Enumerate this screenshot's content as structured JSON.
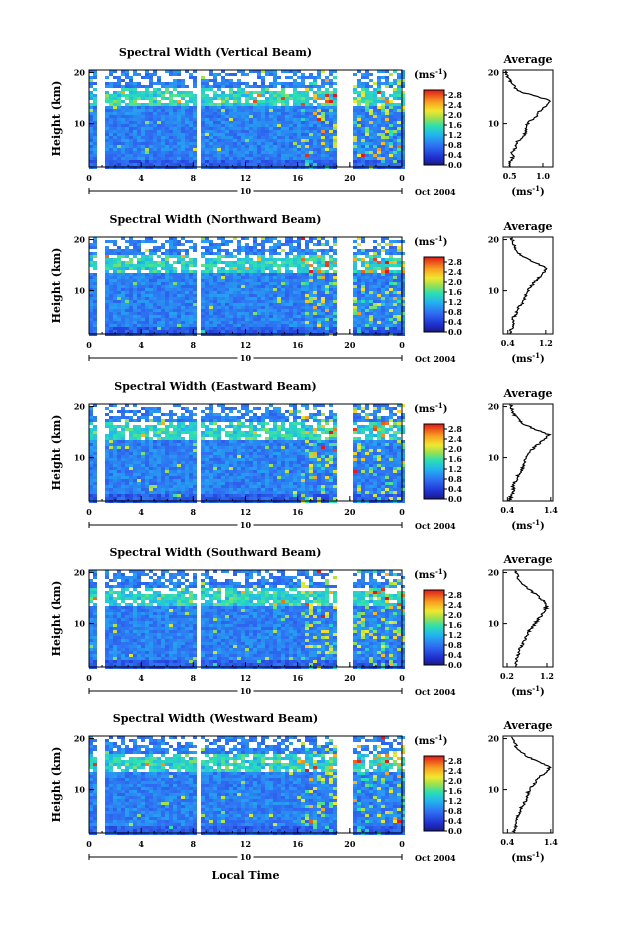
{
  "chart_data": {
    "type": "heatmap",
    "date_label": "Oct 2004",
    "day_label": "10",
    "xlabel": "Local Time",
    "ylabel": "Height (km)",
    "x_ticks": [
      "0",
      "4",
      "8",
      "12",
      "16",
      "20",
      "0"
    ],
    "xlim": [
      0,
      24
    ],
    "y_ticks": [
      "10",
      "20"
    ],
    "ylim": [
      1.5,
      20.5
    ],
    "colorbar": {
      "unit": "(ms",
      "unit_exp": "-1",
      "unit_close": ")",
      "ticks": [
        "2.8",
        "2.4",
        "2.0",
        "1.6",
        "1.2",
        "0.8",
        "0.4",
        "0.0"
      ],
      "range": [
        0,
        3.0
      ]
    },
    "avg_title": "Average",
    "avg_unit": "(ms",
    "avg_unit_exp": "-1",
    "avg_unit_close": ")",
    "panels": [
      {
        "title": "Spectral Width (Vertical Beam)",
        "avg_xticks": [
          "0.5",
          "1.0"
        ],
        "avg_xlim": [
          0.4,
          1.15
        ],
        "avg_profile": [
          [
            1.5,
            0.48
          ],
          [
            2.5,
            0.5
          ],
          [
            3.5,
            0.55
          ],
          [
            4.5,
            0.53
          ],
          [
            5.5,
            0.6
          ],
          [
            6.5,
            0.62
          ],
          [
            7.5,
            0.7
          ],
          [
            8.5,
            0.75
          ],
          [
            9.5,
            0.74
          ],
          [
            10.5,
            0.8
          ],
          [
            11.5,
            0.92
          ],
          [
            12.5,
            0.95
          ],
          [
            13.5,
            1.05
          ],
          [
            14.5,
            1.12
          ],
          [
            15.5,
            0.85
          ],
          [
            16.5,
            0.6
          ],
          [
            17.5,
            0.58
          ],
          [
            18.5,
            0.5
          ],
          [
            19.5,
            0.46
          ],
          [
            20.5,
            0.45
          ]
        ]
      },
      {
        "title": "Spectral Width (Northward Beam)",
        "avg_xticks": [
          "0.4",
          "1.2"
        ],
        "avg_xlim": [
          0.3,
          1.35
        ],
        "avg_profile": [
          [
            1.5,
            0.45
          ],
          [
            2.5,
            0.48
          ],
          [
            3.5,
            0.52
          ],
          [
            4.5,
            0.5
          ],
          [
            5.5,
            0.58
          ],
          [
            6.5,
            0.6
          ],
          [
            7.5,
            0.72
          ],
          [
            8.5,
            0.75
          ],
          [
            9.5,
            0.78
          ],
          [
            10.5,
            0.85
          ],
          [
            11.5,
            0.95
          ],
          [
            12.5,
            1.05
          ],
          [
            13.5,
            1.15
          ],
          [
            14.5,
            1.2
          ],
          [
            15.5,
            0.95
          ],
          [
            16.5,
            0.75
          ],
          [
            17.5,
            0.6
          ],
          [
            18.5,
            0.55
          ],
          [
            19.5,
            0.5
          ],
          [
            20.5,
            0.48
          ]
        ]
      },
      {
        "title": "Spectral Width (Eastward Beam)",
        "avg_xticks": [
          "0.4",
          "1.4"
        ],
        "avg_xlim": [
          0.3,
          1.45
        ],
        "avg_profile": [
          [
            1.5,
            0.45
          ],
          [
            2.5,
            0.48
          ],
          [
            3.5,
            0.55
          ],
          [
            4.5,
            0.52
          ],
          [
            5.5,
            0.6
          ],
          [
            6.5,
            0.65
          ],
          [
            7.5,
            0.72
          ],
          [
            8.5,
            0.78
          ],
          [
            9.5,
            0.8
          ],
          [
            10.5,
            0.85
          ],
          [
            11.5,
            0.95
          ],
          [
            12.5,
            1.1
          ],
          [
            13.5,
            1.25
          ],
          [
            14.5,
            1.35
          ],
          [
            15.5,
            1.05
          ],
          [
            16.5,
            0.8
          ],
          [
            17.5,
            0.65
          ],
          [
            18.5,
            0.55
          ],
          [
            19.5,
            0.5
          ],
          [
            20.5,
            0.47
          ]
        ]
      },
      {
        "title": "Spectral Width (Southward Beam)",
        "avg_xticks": [
          "0.2",
          "1.2"
        ],
        "avg_xlim": [
          0.1,
          1.35
        ],
        "avg_profile": [
          [
            1.5,
            0.4
          ],
          [
            2.5,
            0.42
          ],
          [
            3.5,
            0.45
          ],
          [
            4.5,
            0.5
          ],
          [
            5.5,
            0.55
          ],
          [
            6.5,
            0.62
          ],
          [
            7.5,
            0.68
          ],
          [
            8.5,
            0.75
          ],
          [
            9.5,
            0.85
          ],
          [
            10.5,
            0.95
          ],
          [
            11.5,
            1.05
          ],
          [
            12.5,
            1.15
          ],
          [
            13.5,
            1.2
          ],
          [
            14.5,
            1.1
          ],
          [
            15.5,
            0.95
          ],
          [
            16.5,
            0.8
          ],
          [
            17.5,
            0.6
          ],
          [
            18.5,
            0.5
          ],
          [
            19.5,
            0.45
          ],
          [
            20.5,
            0.42
          ]
        ]
      },
      {
        "title": "Spectral Width (Westward Beam)",
        "avg_xticks": [
          "0.4",
          "1.4"
        ],
        "avg_xlim": [
          0.3,
          1.45
        ],
        "avg_profile": [
          [
            1.5,
            0.55
          ],
          [
            2.5,
            0.58
          ],
          [
            3.5,
            0.62
          ],
          [
            4.5,
            0.6
          ],
          [
            5.5,
            0.7
          ],
          [
            6.5,
            0.72
          ],
          [
            7.5,
            0.8
          ],
          [
            8.5,
            0.85
          ],
          [
            9.5,
            0.88
          ],
          [
            10.5,
            0.95
          ],
          [
            11.5,
            1.05
          ],
          [
            12.5,
            1.15
          ],
          [
            13.5,
            1.3
          ],
          [
            14.5,
            1.38
          ],
          [
            15.5,
            1.1
          ],
          [
            16.5,
            0.85
          ],
          [
            17.5,
            0.7
          ],
          [
            18.5,
            0.6
          ],
          [
            19.5,
            0.55
          ],
          [
            20.5,
            0.5
          ]
        ]
      }
    ]
  }
}
